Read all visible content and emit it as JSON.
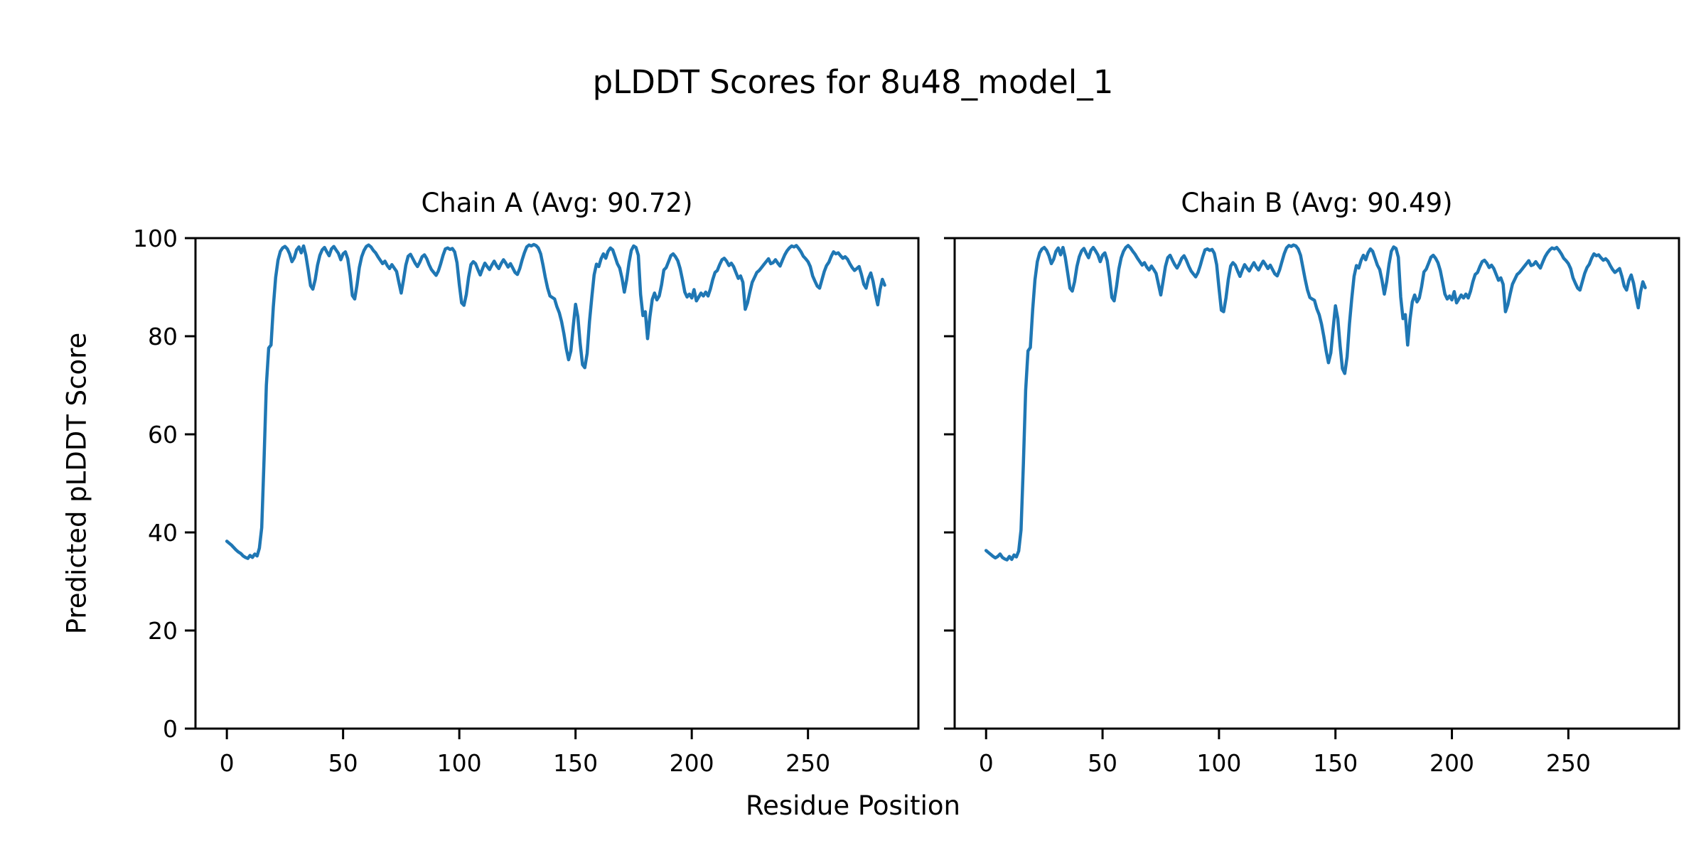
{
  "figure": {
    "title": "pLDDT Scores for 8u48_model_1",
    "xlabel": "Residue Position",
    "ylabel": "Predicted pLDDT Score"
  },
  "style": {
    "line_color": "#1f77b4",
    "axis_color": "#000000",
    "background_color": "#ffffff"
  },
  "chart_data": [
    {
      "type": "line",
      "title": "Chain A (Avg: 90.72)",
      "chain": "A",
      "average_plddt": 90.72,
      "x_start": 0,
      "x_step": 1,
      "xlim": [
        -13.5,
        297.5
      ],
      "ylim": [
        0,
        100
      ],
      "xticks": [
        0,
        50,
        100,
        150,
        200,
        250
      ],
      "yticks": [
        0,
        20,
        40,
        60,
        80,
        100
      ],
      "show_y_tick_labels": true,
      "grid": false,
      "legend": false,
      "line_color": "#1f77b4",
      "values": [
        38.2,
        37.8,
        37.4,
        36.9,
        36.4,
        36.0,
        35.7,
        35.2,
        34.9,
        34.7,
        35.3,
        34.9,
        35.6,
        35.2,
        36.8,
        41.0,
        55.0,
        70.0,
        77.6,
        78.2,
        86.0,
        92.0,
        95.5,
        97.3,
        98.0,
        98.3,
        97.8,
        96.8,
        95.2,
        96.0,
        97.6,
        98.2,
        97.0,
        98.4,
        96.5,
        93.5,
        90.3,
        89.6,
        91.5,
        94.5,
        96.5,
        97.6,
        98.1,
        97.2,
        96.4,
        97.8,
        98.3,
        97.6,
        96.9,
        95.6,
        96.8,
        97.2,
        95.8,
        92.5,
        88.3,
        87.6,
        90.5,
        94.0,
        96.2,
        97.5,
        98.3,
        98.6,
        98.2,
        97.5,
        97.0,
        96.2,
        95.5,
        94.8,
        95.3,
        94.4,
        93.8,
        94.6,
        93.9,
        93.2,
        91.0,
        88.8,
        91.5,
        94.5,
        96.3,
        96.7,
        95.8,
        94.9,
        94.2,
        95.1,
        96.2,
        96.6,
        95.8,
        94.6,
        93.6,
        93.0,
        92.4,
        93.3,
        94.8,
        96.5,
        97.8,
        98.0,
        97.7,
        97.9,
        97.2,
        95.0,
        90.5,
        86.8,
        86.3,
        88.5,
        92.0,
        94.6,
        95.2,
        94.8,
        93.6,
        92.5,
        93.8,
        94.9,
        94.2,
        93.6,
        94.5,
        95.3,
        94.4,
        93.8,
        94.8,
        95.6,
        94.9,
        94.1,
        94.8,
        93.9,
        93.0,
        92.6,
        93.8,
        95.5,
        97.0,
        98.2,
        98.6,
        98.4,
        98.7,
        98.5,
        98.0,
        96.8,
        94.5,
        92.0,
        89.8,
        88.2,
        87.9,
        87.6,
        86.0,
        84.8,
        83.0,
        80.5,
        77.5,
        75.2,
        77.0,
        82.0,
        86.5,
        84.0,
        78.5,
        74.2,
        73.6,
        76.5,
        83.0,
        88.0,
        92.5,
        94.7,
        94.2,
        95.8,
        96.8,
        95.9,
        97.3,
        98.0,
        97.6,
        96.2,
        94.8,
        93.9,
        91.8,
        89.0,
        91.5,
        95.0,
        97.5,
        98.4,
        98.1,
        96.5,
        88.5,
        84.2,
        85.0,
        79.5,
        84.0,
        87.5,
        88.8,
        87.4,
        88.2,
        90.5,
        93.5,
        94.0,
        95.2,
        96.4,
        96.8,
        96.2,
        95.4,
        93.8,
        91.5,
        89.0,
        88.0,
        88.6,
        87.8,
        89.5,
        87.2,
        88.0,
        88.8,
        88.2,
        89.0,
        88.2,
        89.6,
        91.5,
        93.0,
        93.4,
        94.6,
        95.6,
        95.9,
        95.3,
        94.4,
        94.9,
        94.2,
        93.0,
        91.8,
        92.3,
        91.0,
        85.5,
        86.8,
        89.0,
        91.0,
        92.0,
        93.0,
        93.4,
        94.0,
        94.6,
        95.2,
        95.8,
        94.8,
        95.0,
        95.6,
        94.9,
        94.3,
        95.5,
        96.6,
        97.4,
        98.0,
        98.4,
        98.2,
        98.5,
        97.9,
        97.2,
        96.3,
        95.8,
        95.2,
        94.2,
        92.3,
        91.2,
        90.2,
        89.8,
        91.5,
        93.2,
        94.4,
        95.1,
        96.3,
        97.2,
        96.8,
        97.0,
        96.4,
        95.9,
        96.2,
        95.7,
        94.8,
        94.0,
        93.4,
        93.8,
        94.2,
        92.6,
        90.6,
        89.8,
        91.8,
        92.9,
        91.2,
        88.6,
        86.4,
        89.5,
        91.6,
        90.4
      ]
    },
    {
      "type": "line",
      "title": "Chain B (Avg: 90.49)",
      "chain": "B",
      "average_plddt": 90.49,
      "x_start": 0,
      "x_step": 1,
      "xlim": [
        -13.5,
        297.5
      ],
      "ylim": [
        0,
        100
      ],
      "xticks": [
        0,
        50,
        100,
        150,
        200,
        250
      ],
      "yticks": [
        0,
        20,
        40,
        60,
        80,
        100
      ],
      "show_y_tick_labels": false,
      "grid": false,
      "legend": false,
      "line_color": "#1f77b4",
      "values": [
        36.3,
        35.9,
        35.5,
        35.1,
        34.8,
        35.1,
        35.6,
        34.9,
        34.6,
        34.4,
        35.1,
        34.5,
        35.4,
        35.0,
        36.2,
        40.5,
        54.0,
        69.0,
        77.0,
        77.7,
        85.5,
        91.5,
        95.2,
        97.0,
        97.8,
        98.1,
        97.5,
        96.4,
        94.8,
        95.7,
        97.3,
        98.0,
        96.6,
        98.1,
        96.1,
        93.0,
        89.8,
        89.2,
        91.1,
        94.2,
        96.2,
        97.4,
        97.9,
        96.9,
        96.0,
        97.5,
        98.1,
        97.4,
        96.6,
        95.2,
        96.5,
        97.0,
        95.4,
        92.0,
        87.9,
        87.2,
        90.1,
        93.7,
        96.0,
        97.3,
        98.1,
        98.5,
        98.0,
        97.3,
        96.7,
        95.9,
        95.2,
        94.5,
        95.0,
        94.1,
        93.5,
        94.3,
        93.6,
        92.8,
        90.6,
        88.4,
        91.2,
        94.2,
        96.0,
        96.5,
        95.5,
        94.6,
        93.9,
        94.8,
        95.9,
        96.4,
        95.5,
        94.3,
        93.3,
        92.7,
        92.1,
        93.0,
        94.5,
        96.2,
        97.6,
        97.8,
        97.5,
        97.7,
        96.9,
        94.6,
        89.8,
        85.3,
        85.0,
        87.8,
        91.6,
        94.3,
        95.0,
        94.5,
        93.3,
        92.2,
        93.5,
        94.6,
        93.9,
        93.3,
        94.2,
        95.0,
        94.1,
        93.5,
        94.5,
        95.3,
        94.6,
        93.8,
        94.5,
        93.6,
        92.7,
        92.3,
        93.5,
        95.2,
        96.8,
        98.0,
        98.5,
        98.3,
        98.6,
        98.4,
        97.8,
        96.5,
        94.1,
        91.6,
        89.4,
        87.9,
        87.6,
        87.3,
        85.6,
        84.4,
        82.5,
        80.0,
        77.0,
        74.6,
        76.6,
        81.5,
        86.2,
        83.6,
        78.0,
        73.4,
        72.4,
        75.8,
        82.5,
        87.6,
        92.2,
        94.4,
        93.9,
        95.5,
        96.5,
        95.6,
        97.0,
        97.8,
        97.3,
        95.9,
        94.5,
        93.6,
        91.4,
        88.6,
        91.1,
        94.7,
        97.3,
        98.2,
        97.9,
        96.1,
        88.0,
        83.6,
        84.4,
        78.2,
        83.4,
        87.0,
        88.4,
        87.0,
        87.8,
        90.1,
        93.1,
        93.7,
        94.9,
        96.1,
        96.5,
        95.9,
        95.0,
        93.4,
        91.1,
        88.6,
        87.6,
        88.2,
        87.4,
        89.1,
        86.8,
        87.6,
        88.4,
        87.8,
        88.6,
        87.8,
        89.2,
        91.1,
        92.6,
        93.0,
        94.2,
        95.2,
        95.5,
        94.9,
        94.0,
        94.5,
        93.8,
        92.6,
        91.4,
        91.9,
        90.6,
        85.0,
        86.4,
        88.6,
        90.6,
        91.6,
        92.6,
        93.0,
        93.6,
        94.2,
        94.8,
        95.4,
        94.4,
        94.6,
        95.2,
        94.5,
        93.9,
        95.1,
        96.2,
        97.0,
        97.6,
        98.0,
        97.8,
        98.1,
        97.5,
        96.8,
        95.9,
        95.4,
        94.8,
        93.8,
        91.9,
        90.8,
        89.8,
        89.4,
        91.1,
        92.8,
        94.0,
        94.7,
        95.9,
        96.8,
        96.4,
        96.6,
        96.0,
        95.5,
        95.8,
        95.3,
        94.4,
        93.6,
        93.0,
        93.4,
        93.8,
        92.2,
        90.2,
        89.4,
        91.4,
        92.5,
        90.8,
        88.1,
        85.8,
        89.0,
        91.1,
        89.9
      ]
    }
  ]
}
